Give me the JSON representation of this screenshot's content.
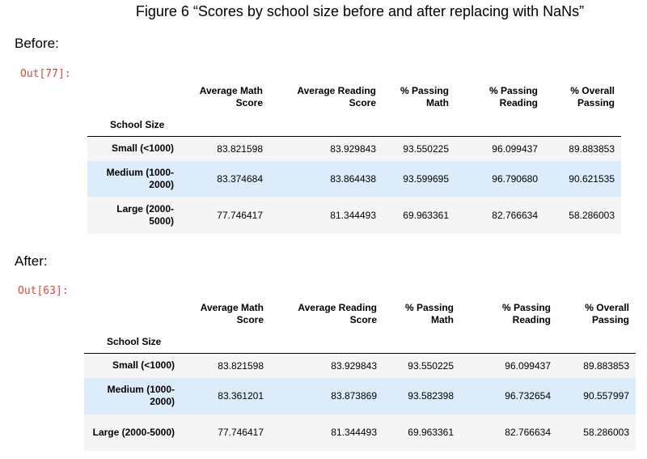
{
  "figure_title": "Figure 6 “Scores by school size before and after replacing with NaNs”",
  "before": {
    "label": "Before:",
    "prompt": "Out[77]:",
    "columns": [
      "Average Math Score",
      "Average Reading Score",
      "% Passing Math",
      "% Passing Reading",
      "% Overall Passing"
    ],
    "index_name": "School Size",
    "rows": [
      {
        "index": "Small (<1000)",
        "values": [
          "83.821598",
          "83.929843",
          "93.550225",
          "96.099437",
          "89.883853"
        ]
      },
      {
        "index": "Medium (1000-2000)",
        "values": [
          "83.374684",
          "83.864438",
          "93.599695",
          "96.790680",
          "90.621535"
        ]
      },
      {
        "index": "Large (2000-5000)",
        "values": [
          "77.746417",
          "81.344493",
          "69.963361",
          "82.766634",
          "58.286003"
        ]
      }
    ]
  },
  "after": {
    "label": "After:",
    "prompt": "Out[63]:",
    "columns": [
      "Average Math Score",
      "Average Reading Score",
      "% Passing Math",
      "% Passing Reading",
      "% Overall Passing"
    ],
    "index_name": "School Size",
    "rows": [
      {
        "index": "Small (<1000)",
        "values": [
          "83.821598",
          "83.929843",
          "93.550225",
          "96.099437",
          "89.883853"
        ]
      },
      {
        "index": "Medium (1000-2000)",
        "values": [
          "83.361201",
          "83.873869",
          "93.582398",
          "96.732654",
          "90.557997"
        ]
      },
      {
        "index": "Large (2000-5000)",
        "values": [
          "77.746417",
          "81.344493",
          "69.963361",
          "82.766634",
          "58.286003"
        ]
      }
    ]
  },
  "colors": {
    "prompt": "#d84a3a",
    "row_alt": "#f5f5f5",
    "row_hover": "#dcecfb"
  }
}
